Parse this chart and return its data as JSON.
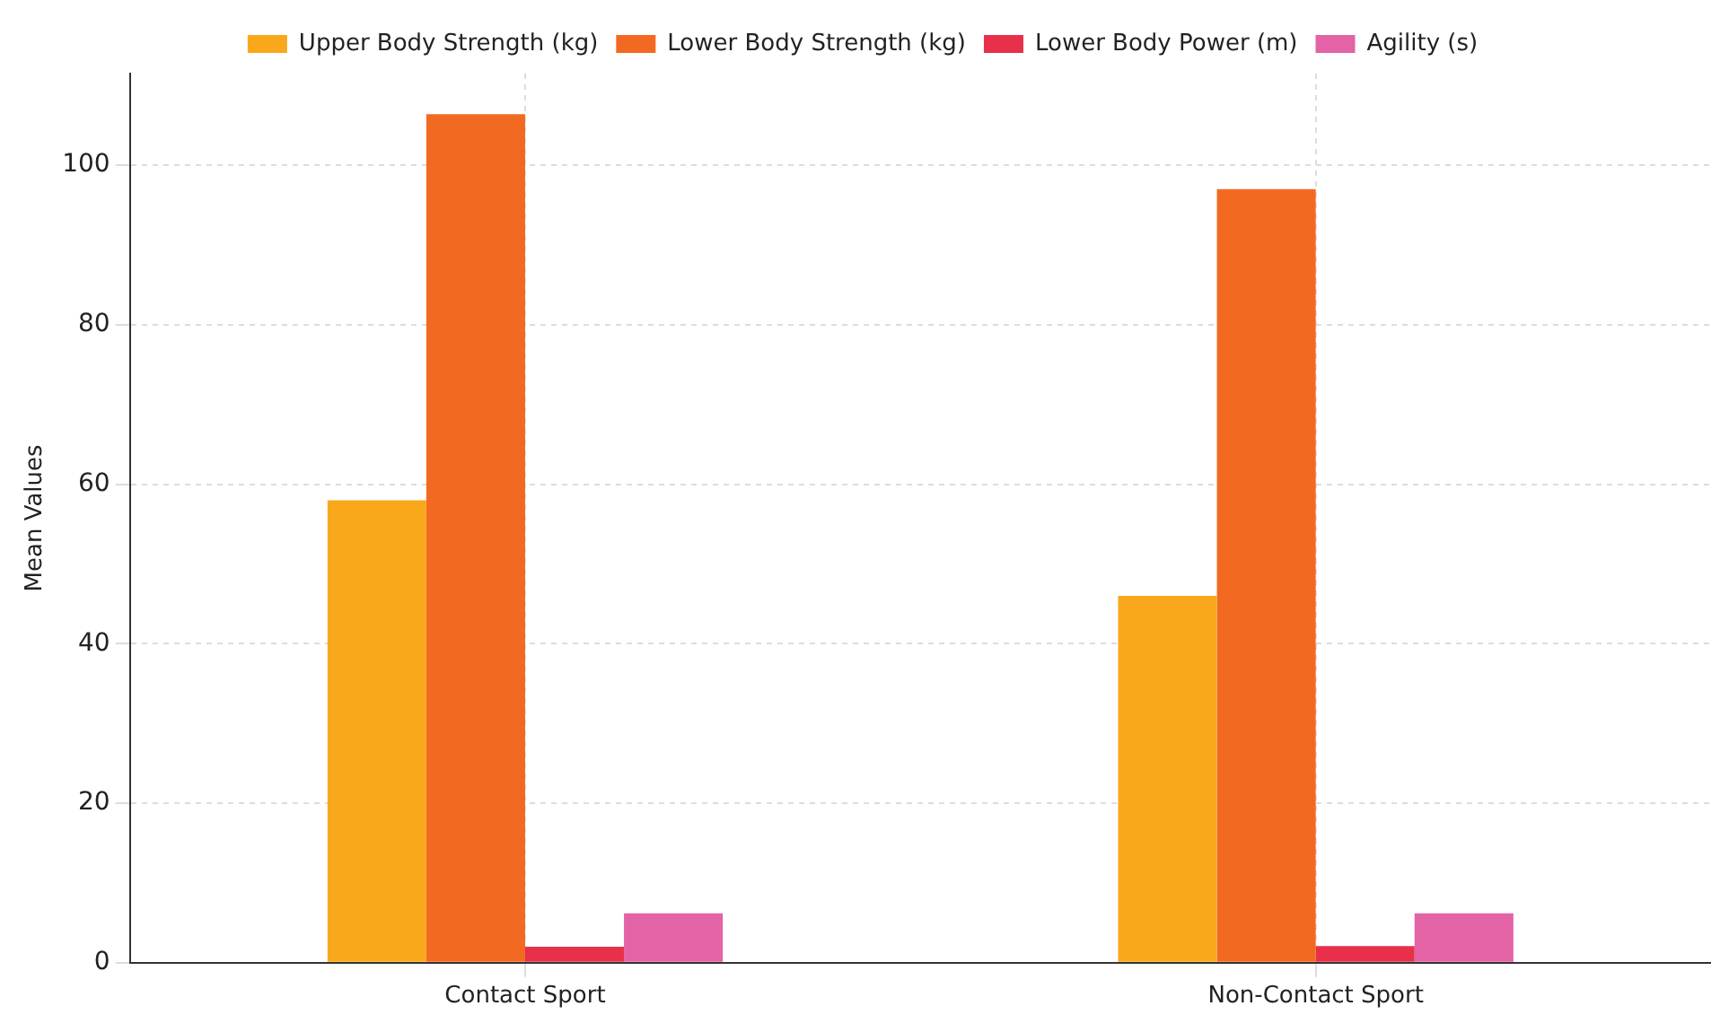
{
  "chart_data": {
    "type": "bar",
    "ylabel": "Mean Values",
    "categories": [
      "Contact Sport",
      "Non-Contact Sport"
    ],
    "series": [
      {
        "name": "Upper Body Strength (kg)",
        "color": "#f9a81c",
        "values": [
          58,
          46
        ]
      },
      {
        "name": "Lower Body Strength (kg)",
        "color": "#f26a21",
        "values": [
          106.4,
          97
        ]
      },
      {
        "name": "Lower Body Power (m)",
        "color": "#e8304a",
        "values": [
          2,
          2.1
        ]
      },
      {
        "name": "Agility (s)",
        "color": "#e462a6",
        "values": [
          6.2,
          6.2
        ]
      }
    ],
    "ylim": [
      0,
      111.5
    ],
    "yticks": [
      0,
      20,
      40,
      60,
      80,
      100
    ],
    "grid": true,
    "legend": "top"
  }
}
